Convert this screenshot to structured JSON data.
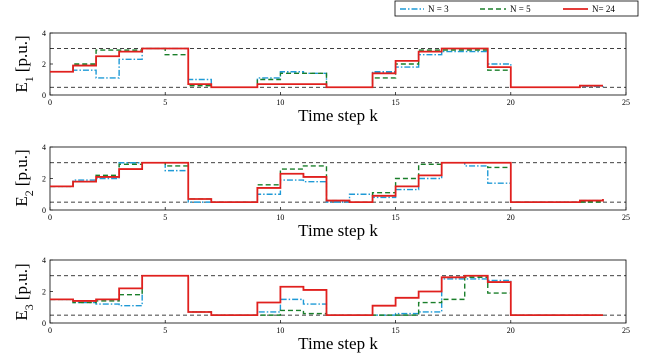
{
  "legend": {
    "entries": [
      {
        "label": "N = 3",
        "color": "#1f9ad6",
        "dash": "6,2,1.5,2"
      },
      {
        "label": "N = 5",
        "color": "#1a7f2a",
        "dash": "5,3"
      },
      {
        "label": "N= 24",
        "color": "#e0201e",
        "dash": ""
      }
    ]
  },
  "chart_data": [
    {
      "type": "line",
      "step": true,
      "ylabel_main": "E",
      "ylabel_sub": "1",
      "ylabel_unit": "[p.u.]",
      "xlabel": "Time step k",
      "xlim": [
        0,
        25
      ],
      "ylim": [
        0,
        4
      ],
      "xticks": [
        0,
        5,
        10,
        15,
        20,
        25
      ],
      "yticks": [
        0,
        2,
        4
      ],
      "reference_lines": [
        0.5,
        3.0
      ],
      "series": [
        {
          "name": "N = 3",
          "x": [
            0,
            1,
            2,
            3,
            4,
            5,
            6,
            7,
            8,
            9,
            10,
            11,
            12,
            13,
            14,
            15,
            16,
            17,
            18,
            19,
            20,
            21,
            22,
            23,
            24
          ],
          "values": [
            1.5,
            1.6,
            1.1,
            2.3,
            3.0,
            3.0,
            1.0,
            0.5,
            0.5,
            1.1,
            1.5,
            1.4,
            0.5,
            0.5,
            1.5,
            1.8,
            2.6,
            2.8,
            2.8,
            2.0,
            0.5,
            0.5,
            0.5,
            0.55,
            0.6
          ]
        },
        {
          "name": "N = 5",
          "x": [
            0,
            1,
            2,
            3,
            4,
            5,
            6,
            7,
            8,
            9,
            10,
            11,
            12,
            13,
            14,
            15,
            16,
            17,
            18,
            19,
            20,
            21,
            22,
            23,
            24
          ],
          "values": [
            1.5,
            2.0,
            2.9,
            2.9,
            3.0,
            2.6,
            0.6,
            0.5,
            0.5,
            1.0,
            1.4,
            1.4,
            0.5,
            0.5,
            1.1,
            2.0,
            2.9,
            2.9,
            2.9,
            1.6,
            0.5,
            0.5,
            0.5,
            0.6,
            0.6
          ]
        },
        {
          "name": "N= 24",
          "x": [
            0,
            1,
            2,
            3,
            4,
            5,
            6,
            7,
            8,
            9,
            10,
            11,
            12,
            13,
            14,
            15,
            16,
            17,
            18,
            19,
            20,
            21,
            22,
            23,
            24
          ],
          "values": [
            1.5,
            1.9,
            2.5,
            2.8,
            3.0,
            3.0,
            0.7,
            0.5,
            0.5,
            0.7,
            0.7,
            0.7,
            0.5,
            0.5,
            1.4,
            2.2,
            2.8,
            3.0,
            3.0,
            1.8,
            0.5,
            0.5,
            0.5,
            0.6,
            0.6
          ]
        }
      ]
    },
    {
      "type": "line",
      "step": true,
      "ylabel_main": "E",
      "ylabel_sub": "2",
      "ylabel_unit": "[p.u.]",
      "xlabel": "Time step k",
      "xlim": [
        0,
        25
      ],
      "ylim": [
        0,
        4
      ],
      "xticks": [
        0,
        5,
        10,
        15,
        20,
        25
      ],
      "yticks": [
        0,
        2,
        4
      ],
      "reference_lines": [
        0.5,
        3.0
      ],
      "series": [
        {
          "name": "N = 3",
          "x": [
            0,
            1,
            2,
            3,
            4,
            5,
            6,
            7,
            8,
            9,
            10,
            11,
            12,
            13,
            14,
            15,
            16,
            17,
            18,
            19,
            20,
            21,
            22,
            23,
            24
          ],
          "values": [
            1.5,
            1.9,
            2.0,
            3.0,
            3.0,
            2.5,
            0.5,
            0.5,
            0.5,
            1.0,
            1.9,
            1.8,
            0.5,
            1.0,
            0.8,
            1.3,
            2.0,
            3.0,
            2.8,
            1.7,
            0.5,
            0.5,
            0.5,
            0.6,
            0.7
          ]
        },
        {
          "name": "N = 5",
          "x": [
            0,
            1,
            2,
            3,
            4,
            5,
            6,
            7,
            8,
            9,
            10,
            11,
            12,
            13,
            14,
            15,
            16,
            17,
            18,
            19,
            20,
            21,
            22,
            23,
            24
          ],
          "values": [
            1.5,
            1.8,
            2.2,
            2.9,
            3.0,
            2.8,
            0.7,
            0.5,
            0.5,
            1.6,
            2.6,
            2.8,
            0.6,
            0.5,
            1.1,
            2.0,
            2.9,
            3.0,
            3.0,
            2.7,
            0.5,
            0.5,
            0.5,
            0.5,
            0.6
          ]
        },
        {
          "name": "N= 24",
          "x": [
            0,
            1,
            2,
            3,
            4,
            5,
            6,
            7,
            8,
            9,
            10,
            11,
            12,
            13,
            14,
            15,
            16,
            17,
            18,
            19,
            20,
            21,
            22,
            23,
            24
          ],
          "values": [
            1.5,
            1.8,
            2.1,
            2.6,
            3.0,
            3.0,
            0.7,
            0.5,
            0.5,
            1.4,
            2.3,
            2.1,
            0.6,
            0.5,
            0.9,
            1.5,
            2.2,
            3.0,
            3.0,
            3.0,
            0.5,
            0.5,
            0.5,
            0.6,
            0.7
          ]
        }
      ]
    },
    {
      "type": "line",
      "step": true,
      "ylabel_main": "E",
      "ylabel_sub": "3",
      "ylabel_unit": "[p.u.]",
      "xlabel": "Time step k",
      "xlim": [
        0,
        25
      ],
      "ylim": [
        0,
        4
      ],
      "xticks": [
        0,
        5,
        10,
        15,
        20,
        25
      ],
      "yticks": [
        0,
        2,
        4
      ],
      "reference_lines": [
        0.5,
        3.0
      ],
      "series": [
        {
          "name": "N = 3",
          "x": [
            0,
            1,
            2,
            3,
            4,
            5,
            6,
            7,
            8,
            9,
            10,
            11,
            12,
            13,
            14,
            15,
            16,
            17,
            18,
            19,
            20,
            21,
            22,
            23,
            24
          ],
          "values": [
            1.5,
            1.3,
            1.2,
            1.1,
            3.0,
            3.0,
            0.7,
            0.5,
            0.5,
            0.7,
            1.5,
            1.2,
            0.5,
            0.5,
            0.5,
            0.6,
            0.7,
            2.8,
            2.8,
            2.7,
            0.5,
            0.5,
            0.5,
            0.5,
            0.5
          ]
        },
        {
          "name": "N = 5",
          "x": [
            0,
            1,
            2,
            3,
            4,
            5,
            6,
            7,
            8,
            9,
            10,
            11,
            12,
            13,
            14,
            15,
            16,
            17,
            18,
            19,
            20,
            21,
            22,
            23,
            24
          ],
          "values": [
            1.5,
            1.3,
            1.4,
            1.8,
            3.0,
            3.0,
            0.7,
            0.5,
            0.5,
            0.5,
            0.8,
            0.6,
            0.5,
            0.5,
            0.5,
            0.5,
            1.3,
            1.5,
            2.9,
            1.9,
            0.5,
            0.5,
            0.5,
            0.5,
            0.5
          ]
        },
        {
          "name": "N= 24",
          "x": [
            0,
            1,
            2,
            3,
            4,
            5,
            6,
            7,
            8,
            9,
            10,
            11,
            12,
            13,
            14,
            15,
            16,
            17,
            18,
            19,
            20,
            21,
            22,
            23,
            24
          ],
          "values": [
            1.5,
            1.4,
            1.5,
            2.2,
            3.0,
            3.0,
            0.7,
            0.5,
            0.5,
            1.3,
            2.3,
            2.1,
            0.5,
            0.5,
            1.1,
            1.6,
            2.0,
            2.9,
            3.0,
            2.6,
            0.5,
            0.5,
            0.5,
            0.5,
            0.5
          ]
        }
      ]
    }
  ]
}
